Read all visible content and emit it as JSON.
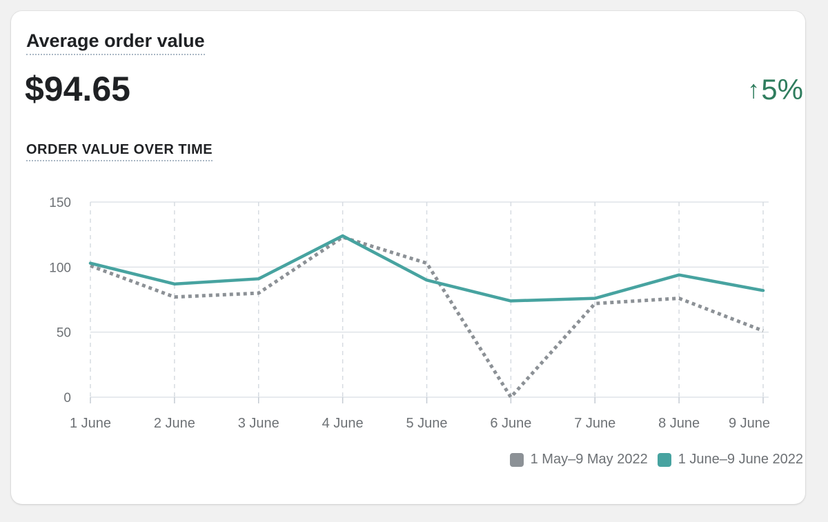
{
  "card": {
    "title": "Average order value",
    "metric": "$94.65",
    "delta": "5%",
    "delta_icon": "arrow-up-icon",
    "delta_color": "#2f7d5e",
    "chart_title": "ORDER VALUE OVER TIME"
  },
  "chart_data": {
    "type": "line",
    "title": "ORDER VALUE OVER TIME",
    "categories": [
      "1 June",
      "2 June",
      "3 June",
      "4 June",
      "5 June",
      "6 June",
      "7 June",
      "8 June",
      "9 June"
    ],
    "yticks": [
      0,
      50,
      100,
      150
    ],
    "ylim": [
      0,
      150
    ],
    "grid": true,
    "legend_position": "bottom-right",
    "series": [
      {
        "name": "1 May–9 May 2022",
        "color": "#8c9196",
        "style": "dotted",
        "values": [
          101,
          77,
          80,
          123,
          103,
          0,
          72,
          76,
          51
        ]
      },
      {
        "name": "1 June–9 June 2022",
        "color": "#47a3a0",
        "style": "solid",
        "values": [
          103,
          87,
          91,
          124,
          90,
          74,
          76,
          94,
          82
        ]
      }
    ]
  }
}
